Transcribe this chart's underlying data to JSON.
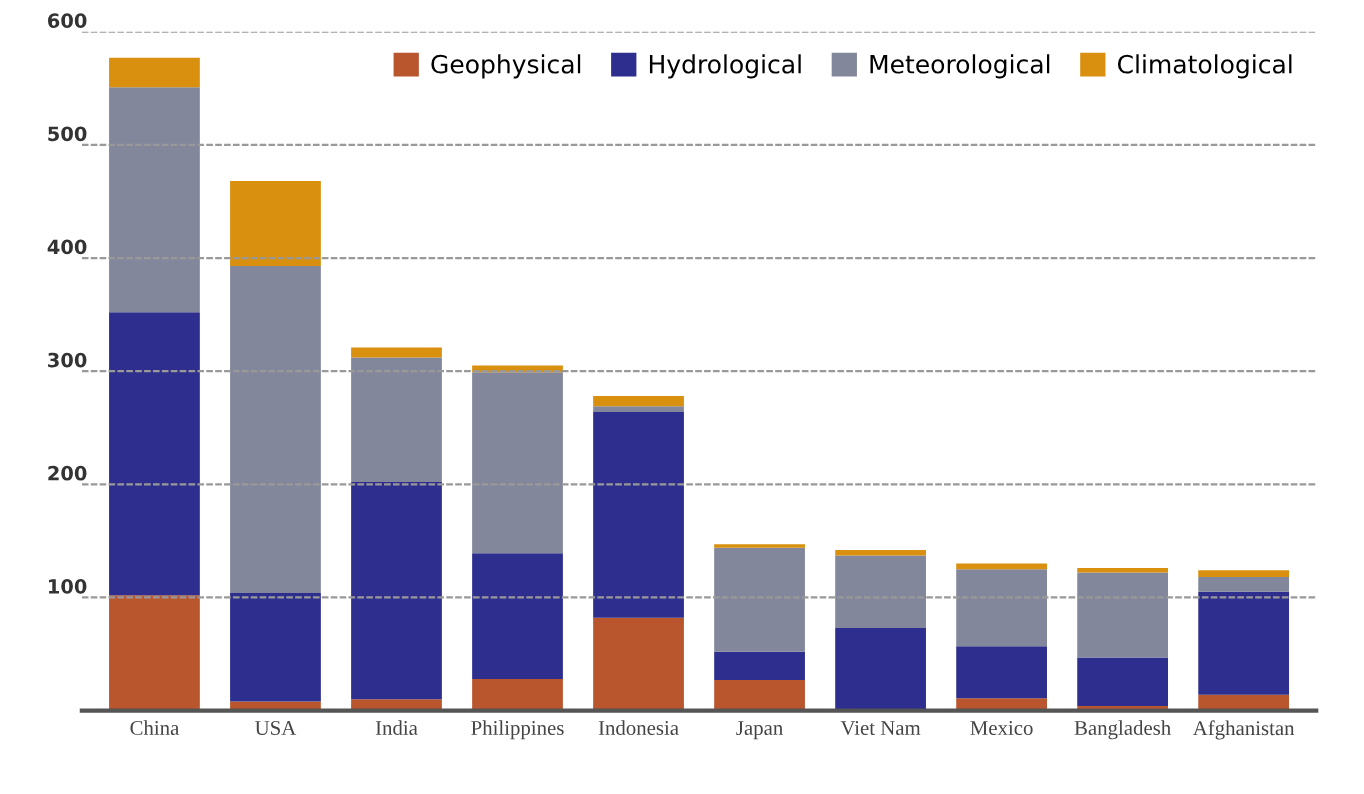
{
  "chart_data": {
    "type": "bar",
    "stacked": true,
    "categories": [
      "China",
      "USA",
      "India",
      "Philippines",
      "Indonesia",
      "Japan",
      "Viet Nam",
      "Mexico",
      "Bangladesh",
      "Afghanistan"
    ],
    "series": [
      {
        "name": "Geophysical",
        "color": "#b9562e",
        "values": [
          102,
          8,
          10,
          28,
          82,
          27,
          1,
          11,
          4,
          14
        ]
      },
      {
        "name": "Hydrological",
        "color": "#2e2e8e",
        "values": [
          250,
          96,
          192,
          111,
          182,
          25,
          72,
          46,
          43,
          91
        ]
      },
      {
        "name": "Meteorological",
        "color": "#83879b",
        "values": [
          199,
          289,
          110,
          160,
          5,
          92,
          64,
          68,
          75,
          13
        ]
      },
      {
        "name": "Climatological",
        "color": "#d9900f",
        "values": [
          26,
          75,
          9,
          6,
          9,
          3,
          5,
          5,
          4,
          6
        ]
      }
    ],
    "ylim": [
      0,
      600
    ],
    "yticks": [
      100,
      200,
      300,
      400,
      500,
      600
    ],
    "grid": "y",
    "legend": "top right"
  }
}
